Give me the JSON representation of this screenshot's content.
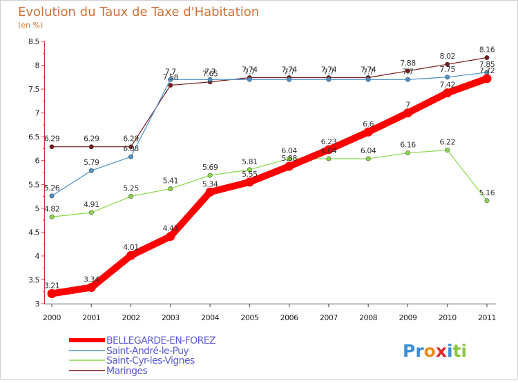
{
  "chart_data": {
    "type": "line",
    "title": "Evolution du Taux de Taxe d'Habitation",
    "subtitle": "(en %)",
    "xlabel": "",
    "ylabel": "",
    "x": [
      "2000",
      "2001",
      "2002",
      "2003",
      "2004",
      "2005",
      "2006",
      "2007",
      "2008",
      "2009",
      "2010",
      "2011"
    ],
    "ylim": [
      3,
      8.5
    ],
    "yticks": [
      "3",
      "3.5",
      "4",
      "4.5",
      "5",
      "5.5",
      "6",
      "6.5",
      "7",
      "7.5",
      "8",
      "8.5"
    ],
    "grid": false,
    "legend_placement": "bottom-left",
    "series": [
      {
        "name": "BELLEGARDE-EN-FOREZ",
        "color": "#ff0000",
        "values": [
          3.21,
          3.34,
          4.01,
          4.41,
          5.34,
          5.55,
          5.88,
          6.23,
          6.6,
          7,
          7.42,
          7.72
        ],
        "labels": [
          "3.21",
          "3.34",
          "4.01",
          "4.41",
          "5.34",
          "5.55",
          "5.88",
          "6.23",
          "6.6",
          "7",
          "7.42",
          "7.72"
        ]
      },
      {
        "name": "Saint-André-le-Puy",
        "color": "#4a90c8",
        "values": [
          5.26,
          5.79,
          6.08,
          7.7,
          7.7,
          7.7,
          7.7,
          7.7,
          7.7,
          7.7,
          7.75,
          7.85
        ],
        "labels": [
          "5.26",
          "5.79",
          "6.08",
          "7.7",
          "7.7",
          "7.7",
          "7.7",
          "7.7",
          "7.7",
          "7.7",
          "7.75",
          "7.85"
        ]
      },
      {
        "name": "Saint-Cyr-les-Vignes",
        "color": "#88d848",
        "values": [
          4.82,
          4.91,
          5.25,
          5.41,
          5.69,
          5.81,
          6.04,
          6.04,
          6.04,
          6.16,
          6.22,
          5.16
        ],
        "labels": [
          "4.82",
          "4.91",
          "5.25",
          "5.41",
          "5.69",
          "5.81",
          "6.04",
          "6.04",
          "6.04",
          "6.16",
          "6.22",
          "5.16"
        ]
      },
      {
        "name": "Maringes",
        "color": "#7a1a1a",
        "values": [
          6.29,
          6.29,
          6.29,
          7.58,
          7.65,
          7.74,
          7.74,
          7.74,
          7.74,
          7.88,
          8.02,
          8.16
        ],
        "labels": [
          "6.29",
          "6.29",
          "6.29",
          "7.58",
          "7.65",
          "7.74",
          "7.74",
          "7.74",
          "7.74",
          "7.88",
          "8.02",
          "8.16"
        ]
      }
    ]
  },
  "logo": {
    "text": "Proxiti"
  }
}
